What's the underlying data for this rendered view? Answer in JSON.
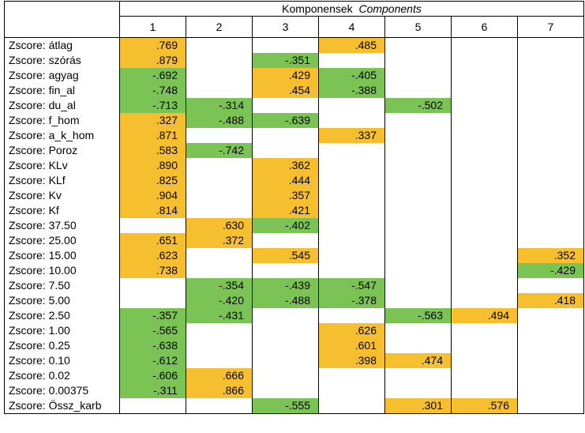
{
  "header": {
    "title_hu": "Komponensek",
    "title_en": "Components",
    "component_numbers": [
      "1",
      "2",
      "3",
      "4",
      "5",
      "6",
      "7"
    ]
  },
  "colors": {
    "positive": "#f5bf2f",
    "negative": "#7cc355"
  },
  "rows": [
    {
      "label": "Zscore:  átlag",
      "values": [
        ".769",
        "",
        "",
        ".485",
        "",
        "",
        ""
      ]
    },
    {
      "label": "Zscore:  szórás",
      "values": [
        ".879",
        "",
        "-.351",
        "",
        "",
        "",
        ""
      ]
    },
    {
      "label": "Zscore:  agyag",
      "values": [
        "-.692",
        "",
        ".429",
        "-.405",
        "",
        "",
        ""
      ]
    },
    {
      "label": "Zscore:  fin_al",
      "values": [
        "-.748",
        "",
        ".454",
        "-.388",
        "",
        "",
        ""
      ]
    },
    {
      "label": "Zscore:  du_al",
      "values": [
        "-.713",
        "-.314",
        "",
        "",
        "-.502",
        "",
        ""
      ]
    },
    {
      "label": "Zscore:  f_hom",
      "values": [
        ".327",
        "-.488",
        "-.639",
        "",
        "",
        "",
        ""
      ]
    },
    {
      "label": "Zscore:  a_k_hom",
      "values": [
        ".871",
        "",
        "",
        ".337",
        "",
        "",
        ""
      ]
    },
    {
      "label": "Zscore:  Poroz",
      "values": [
        ".583",
        "-.742",
        "",
        "",
        "",
        "",
        ""
      ]
    },
    {
      "label": "Zscore:  KLv",
      "values": [
        ".890",
        "",
        ".362",
        "",
        "",
        "",
        ""
      ]
    },
    {
      "label": "Zscore:  KLf",
      "values": [
        ".825",
        "",
        ".444",
        "",
        "",
        "",
        ""
      ]
    },
    {
      "label": "Zscore:  Kv",
      "values": [
        ".904",
        "",
        ".357",
        "",
        "",
        "",
        ""
      ]
    },
    {
      "label": "Zscore:  Kf",
      "values": [
        ".814",
        "",
        ".421",
        "",
        "",
        "",
        ""
      ]
    },
    {
      "label": "Zscore:  37.50",
      "values": [
        "",
        ".630",
        "-.402",
        "",
        "",
        "",
        ""
      ]
    },
    {
      "label": "Zscore:  25.00",
      "values": [
        ".651",
        ".372",
        "",
        "",
        "",
        "",
        ""
      ]
    },
    {
      "label": "Zscore:  15.00",
      "values": [
        ".623",
        "",
        ".545",
        "",
        "",
        "",
        ".352"
      ]
    },
    {
      "label": "Zscore:  10.00",
      "values": [
        ".738",
        "",
        "",
        "",
        "",
        "",
        "-.429"
      ]
    },
    {
      "label": "Zscore:  7.50",
      "values": [
        "",
        "-.354",
        "-.439",
        "-.547",
        "",
        "",
        ""
      ]
    },
    {
      "label": "Zscore:  5.00",
      "values": [
        "",
        "-.420",
        "-.488",
        "-.378",
        "",
        "",
        ".418"
      ]
    },
    {
      "label": "Zscore:  2.50",
      "values": [
        "-.357",
        "-.431",
        "",
        "",
        "-.563",
        ".494",
        ""
      ]
    },
    {
      "label": "Zscore:  1.00",
      "values": [
        "-.565",
        "",
        "",
        ".626",
        "",
        "",
        ""
      ]
    },
    {
      "label": "Zscore:  0.25",
      "values": [
        "-.638",
        "",
        "",
        ".601",
        "",
        "",
        ""
      ]
    },
    {
      "label": "Zscore:  0.10",
      "values": [
        "-.612",
        "",
        "",
        ".398",
        ".474",
        "",
        ""
      ]
    },
    {
      "label": "Zscore:  0.02",
      "values": [
        "-.606",
        ".666",
        "",
        "",
        "",
        "",
        ""
      ]
    },
    {
      "label": "Zscore:  0.00375",
      "values": [
        "-.311",
        ".866",
        "",
        "",
        "",
        "",
        ""
      ]
    },
    {
      "label": "Zscore:  Össz_karb",
      "values": [
        "",
        "",
        "-.555",
        "",
        ".301",
        ".576",
        ""
      ]
    }
  ]
}
